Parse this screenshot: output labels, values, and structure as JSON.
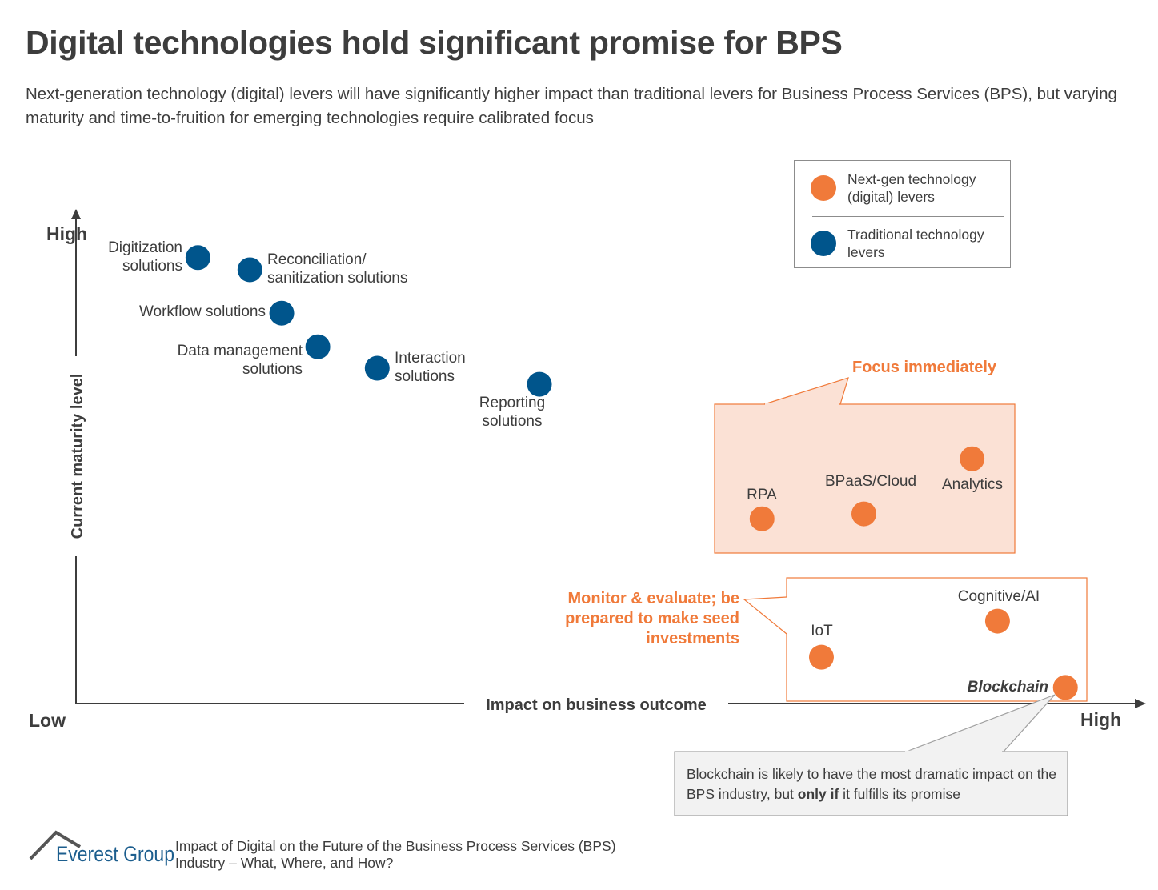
{
  "title": "Digital technologies hold significant promise for BPS",
  "subtitle": "Next-generation technology (digital) levers will have significantly higher impact than traditional levers for Business Process Services (BPS), but varying maturity and time-to-fruition for emerging technologies require calibrated focus",
  "chart_data": {
    "type": "scatter",
    "xlabel": "Impact on business outcome",
    "ylabel": "Current maturity level",
    "x_ticks": {
      "low": "Low",
      "high": "High"
    },
    "y_ticks": {
      "high": "High"
    },
    "scale_note_hidden": "qualitative axes, values estimated on 0-100 scale",
    "xlim": [
      0,
      100
    ],
    "ylim": [
      0,
      100
    ],
    "legend": {
      "placement": "top-right",
      "items": [
        {
          "name": "Next-gen technology (digital) levers",
          "color": "#f07a3a"
        },
        {
          "name": "Traditional technology levers",
          "color": "#00558c"
        }
      ]
    },
    "points": [
      {
        "label": "Digitization\nsolutions",
        "series": 1,
        "x": 11.5,
        "y": 91.5
      },
      {
        "label": "Reconciliation/\nsanitization solutions",
        "series": 1,
        "x": 16.4,
        "y": 89
      },
      {
        "label": "Workflow solutions",
        "series": 1,
        "x": 19.4,
        "y": 80.1
      },
      {
        "label": "Data management\nsolutions",
        "series": 1,
        "x": 22.8,
        "y": 73.2
      },
      {
        "label": "Interaction\nsolutions",
        "series": 1,
        "x": 28.4,
        "y": 68.8
      },
      {
        "label": "Reporting\nsolutions",
        "series": 1,
        "x": 43.7,
        "y": 65.5
      },
      {
        "label": "RPA",
        "series": 0,
        "x": 64.7,
        "y": 37.9
      },
      {
        "label": "BPaaS/Cloud",
        "series": 0,
        "x": 74.3,
        "y": 38.9
      },
      {
        "label": "Analytics",
        "series": 0,
        "x": 84.5,
        "y": 50.2
      },
      {
        "label": "IoT",
        "series": 0,
        "x": 70.3,
        "y": 9.5
      },
      {
        "label": "Cognitive/AI",
        "series": 0,
        "x": 86.9,
        "y": 16.9
      },
      {
        "label": "Blockchain",
        "series": 0,
        "x": 93.3,
        "y": 3.3
      }
    ],
    "annotations": {
      "focus": "Focus immediately",
      "monitor": "Monitor & evaluate; be\nprepared to make seed\ninvestments",
      "blockchain_note_a": "Blockchain is likely to have the most dramatic impact on the BPS industry, but ",
      "blockchain_note_bold": "only if",
      "blockchain_note_b": " it fulfills its promise"
    }
  },
  "footer": {
    "logo": "Everest Group",
    "text": "Impact of Digital on the Future of the Business Process Services (BPS)\nIndustry – What, Where, and How?"
  }
}
